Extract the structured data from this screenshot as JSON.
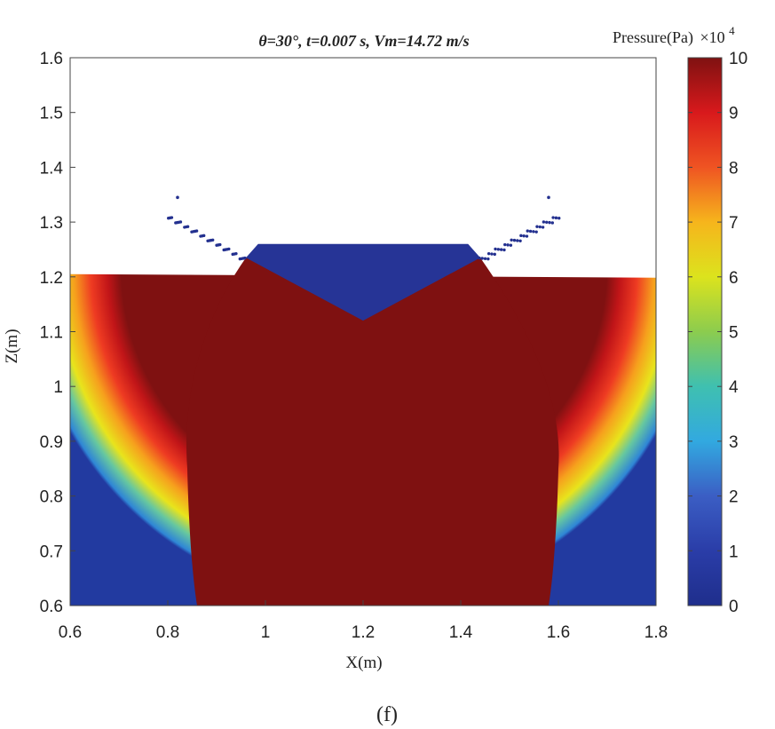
{
  "chart_data": {
    "type": "heatmap",
    "title": "θ=30°,  t=0.007 s,  Vm=14.72 m/s",
    "xlabel": "X(m)",
    "ylabel": "Z(m)",
    "xlim": [
      0.6,
      1.8
    ],
    "ylim": [
      0.6,
      1.6
    ],
    "x_ticks": [
      0.6,
      0.8,
      1.0,
      1.2,
      1.4,
      1.6,
      1.8
    ],
    "x_tick_labels": [
      "0.6",
      "0.8",
      "1",
      "1.2",
      "1.4",
      "1.6",
      "1.8"
    ],
    "y_ticks": [
      0.6,
      0.7,
      0.8,
      0.9,
      1.0,
      1.1,
      1.2,
      1.3,
      1.4,
      1.5,
      1.6
    ],
    "y_tick_labels": [
      "0.6",
      "0.7",
      "0.8",
      "0.9",
      "1",
      "1.1",
      "1.2",
      "1.3",
      "1.4",
      "1.5",
      "1.6"
    ],
    "colorbar": {
      "label": "Pressure(Pa)",
      "multiplier": "×10",
      "exponent": "4",
      "range": [
        0,
        10
      ],
      "ticks": [
        0,
        1,
        2,
        3,
        4,
        5,
        6,
        7,
        8,
        9,
        10
      ],
      "colormap": "jet"
    },
    "fluid_surface_z": 1.205,
    "fluid_x_range": [
      0.6,
      1.8
    ],
    "wedge": {
      "deadrise_deg": 30,
      "apex_x": 1.2,
      "apex_z": 1.12,
      "top_z": 1.26,
      "top_x_range": [
        0.96,
        1.44
      ]
    },
    "high_pressure_region": {
      "x_at_bottom": [
        0.86,
        1.58
      ],
      "x_at_mid": [
        0.84,
        1.6
      ],
      "z_bottom": 0.6
    },
    "spray_jets": [
      {
        "side": "left",
        "from": [
          0.96,
          1.23
        ],
        "to": [
          0.8,
          1.31
        ]
      },
      {
        "side": "right",
        "from": [
          1.44,
          1.23
        ],
        "to": [
          1.6,
          1.31
        ]
      }
    ],
    "panel_label": "(f)"
  },
  "colors": {
    "high": "#7f1111",
    "zero": "#1f2e8c",
    "background": "#ffffff"
  }
}
